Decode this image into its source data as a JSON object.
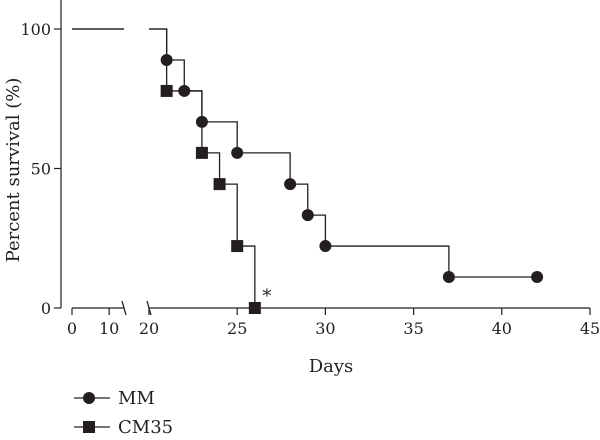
{
  "chart_data": {
    "type": "line",
    "subtype": "kaplan-meier-step",
    "title": "",
    "xlabel": "Days",
    "ylabel": "Percent survival (%)",
    "x_axis_break": [
      14,
      20
    ],
    "xlim": [
      0,
      45
    ],
    "ylim": [
      0,
      100
    ],
    "xticks": [
      0,
      10,
      20,
      25,
      30,
      35,
      40,
      45
    ],
    "yticks": [
      0,
      50,
      100
    ],
    "grid": false,
    "legend_position": "bottom-left",
    "series": [
      {
        "name": "MM",
        "marker": "circle",
        "color": "#231f20",
        "steps": [
          {
            "day": 0,
            "survival": 100
          },
          {
            "day": 21,
            "survival": 88.9
          },
          {
            "day": 22,
            "survival": 77.8
          },
          {
            "day": 23,
            "survival": 66.7
          },
          {
            "day": 25,
            "survival": 55.6
          },
          {
            "day": 28,
            "survival": 44.4
          },
          {
            "day": 29,
            "survival": 33.3
          },
          {
            "day": 30,
            "survival": 22.2
          },
          {
            "day": 37,
            "survival": 11.1
          }
        ],
        "end_day": 42,
        "markers": [
          {
            "day": 21,
            "survival": 88.9
          },
          {
            "day": 22,
            "survival": 77.8
          },
          {
            "day": 23,
            "survival": 66.7
          },
          {
            "day": 25,
            "survival": 55.6
          },
          {
            "day": 28,
            "survival": 44.4
          },
          {
            "day": 29,
            "survival": 33.3
          },
          {
            "day": 30,
            "survival": 22.2
          },
          {
            "day": 37,
            "survival": 11.1
          },
          {
            "day": 42,
            "survival": 11.1
          }
        ]
      },
      {
        "name": "CM35",
        "marker": "square",
        "color": "#231f20",
        "steps": [
          {
            "day": 0,
            "survival": 100
          },
          {
            "day": 21,
            "survival": 77.8
          },
          {
            "day": 23,
            "survival": 55.6
          },
          {
            "day": 24,
            "survival": 44.4
          },
          {
            "day": 25,
            "survival": 22.2
          },
          {
            "day": 26,
            "survival": 0
          }
        ],
        "end_day": 26,
        "markers": [
          {
            "day": 21,
            "survival": 77.8
          },
          {
            "day": 23,
            "survival": 55.6
          },
          {
            "day": 24,
            "survival": 44.4
          },
          {
            "day": 25,
            "survival": 22.2
          },
          {
            "day": 26,
            "survival": 0
          }
        ]
      }
    ],
    "annotations": [
      {
        "text": "*",
        "day": 26,
        "survival": 0
      }
    ]
  }
}
